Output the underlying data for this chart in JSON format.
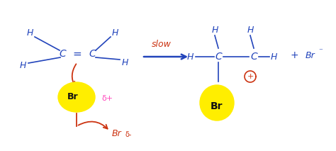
{
  "background_color": "#ffffff",
  "figsize": [
    4.74,
    2.13
  ],
  "dpi": 100,
  "blue": "#2244bb",
  "red": "#cc3311",
  "pink": "#ff44bb",
  "black": "#111111",
  "yellow": "#ffee00",
  "xlim": [
    0,
    474
  ],
  "ylim": [
    0,
    213
  ]
}
